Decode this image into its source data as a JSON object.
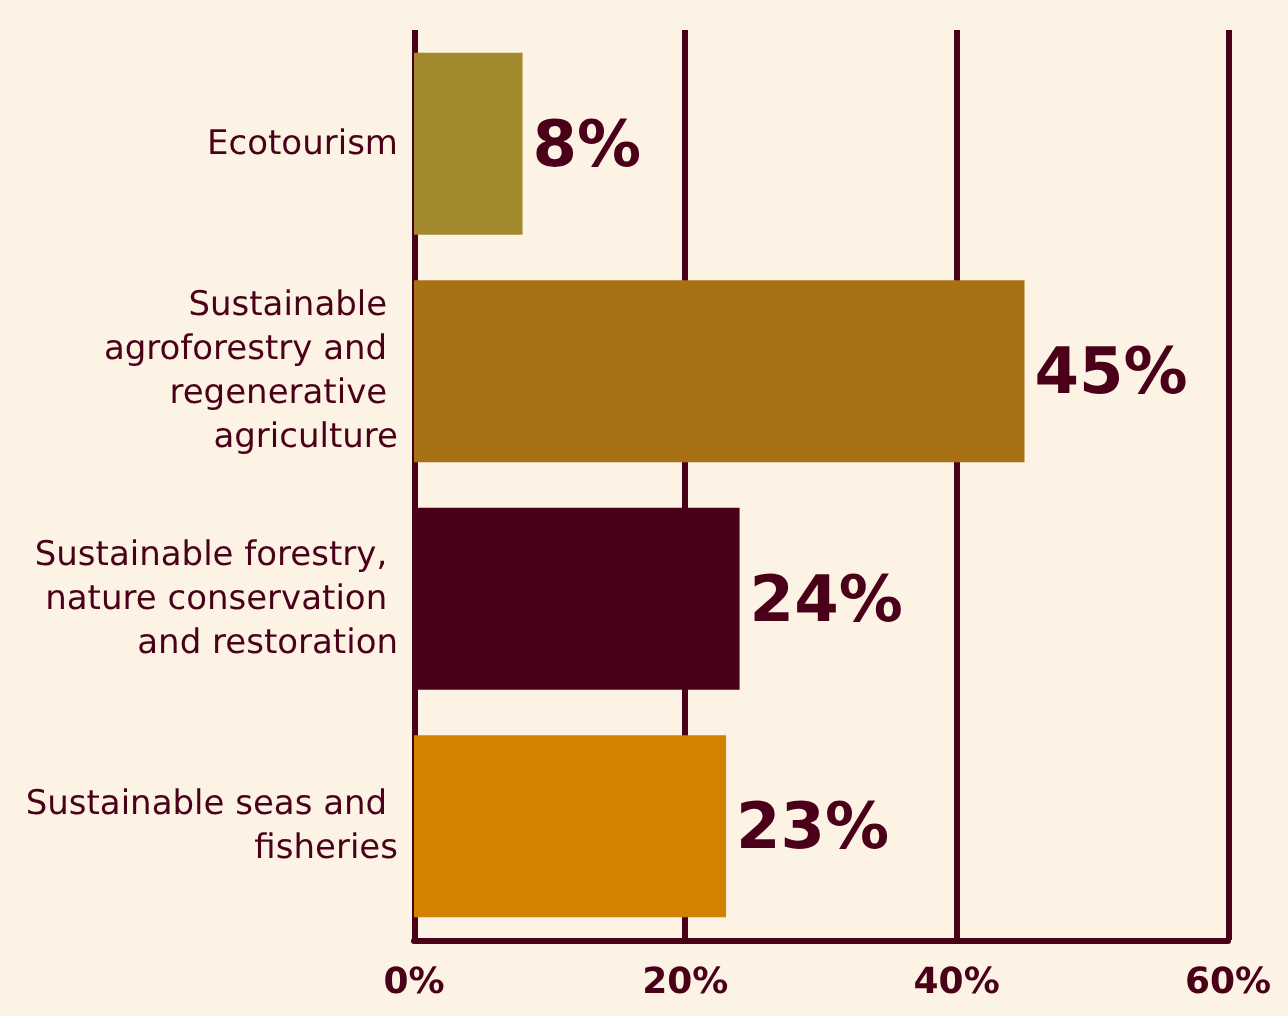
{
  "chart_data": {
    "type": "bar",
    "orientation": "horizontal",
    "categories": [
      "Ecotourism",
      "Sustainable agroforestry and regenerative agriculture",
      "Sustainable forestry, nature conservation and restoration",
      "Sustainable seas and fisheries"
    ],
    "values": [
      8,
      45,
      24,
      23
    ],
    "colors": [
      "#a3892e",
      "#a87214",
      "#4a0019",
      "#d08200"
    ],
    "value_labels": [
      "8%",
      "45%",
      "24%",
      "23%"
    ],
    "xlim": [
      0,
      60
    ],
    "xticks": [
      {
        "value": 0,
        "label": "0%"
      },
      {
        "value": 20,
        "label": "20%"
      },
      {
        "value": 40,
        "label": "40%"
      },
      {
        "value": 60,
        "label": "60%"
      }
    ],
    "grid": "x"
  }
}
